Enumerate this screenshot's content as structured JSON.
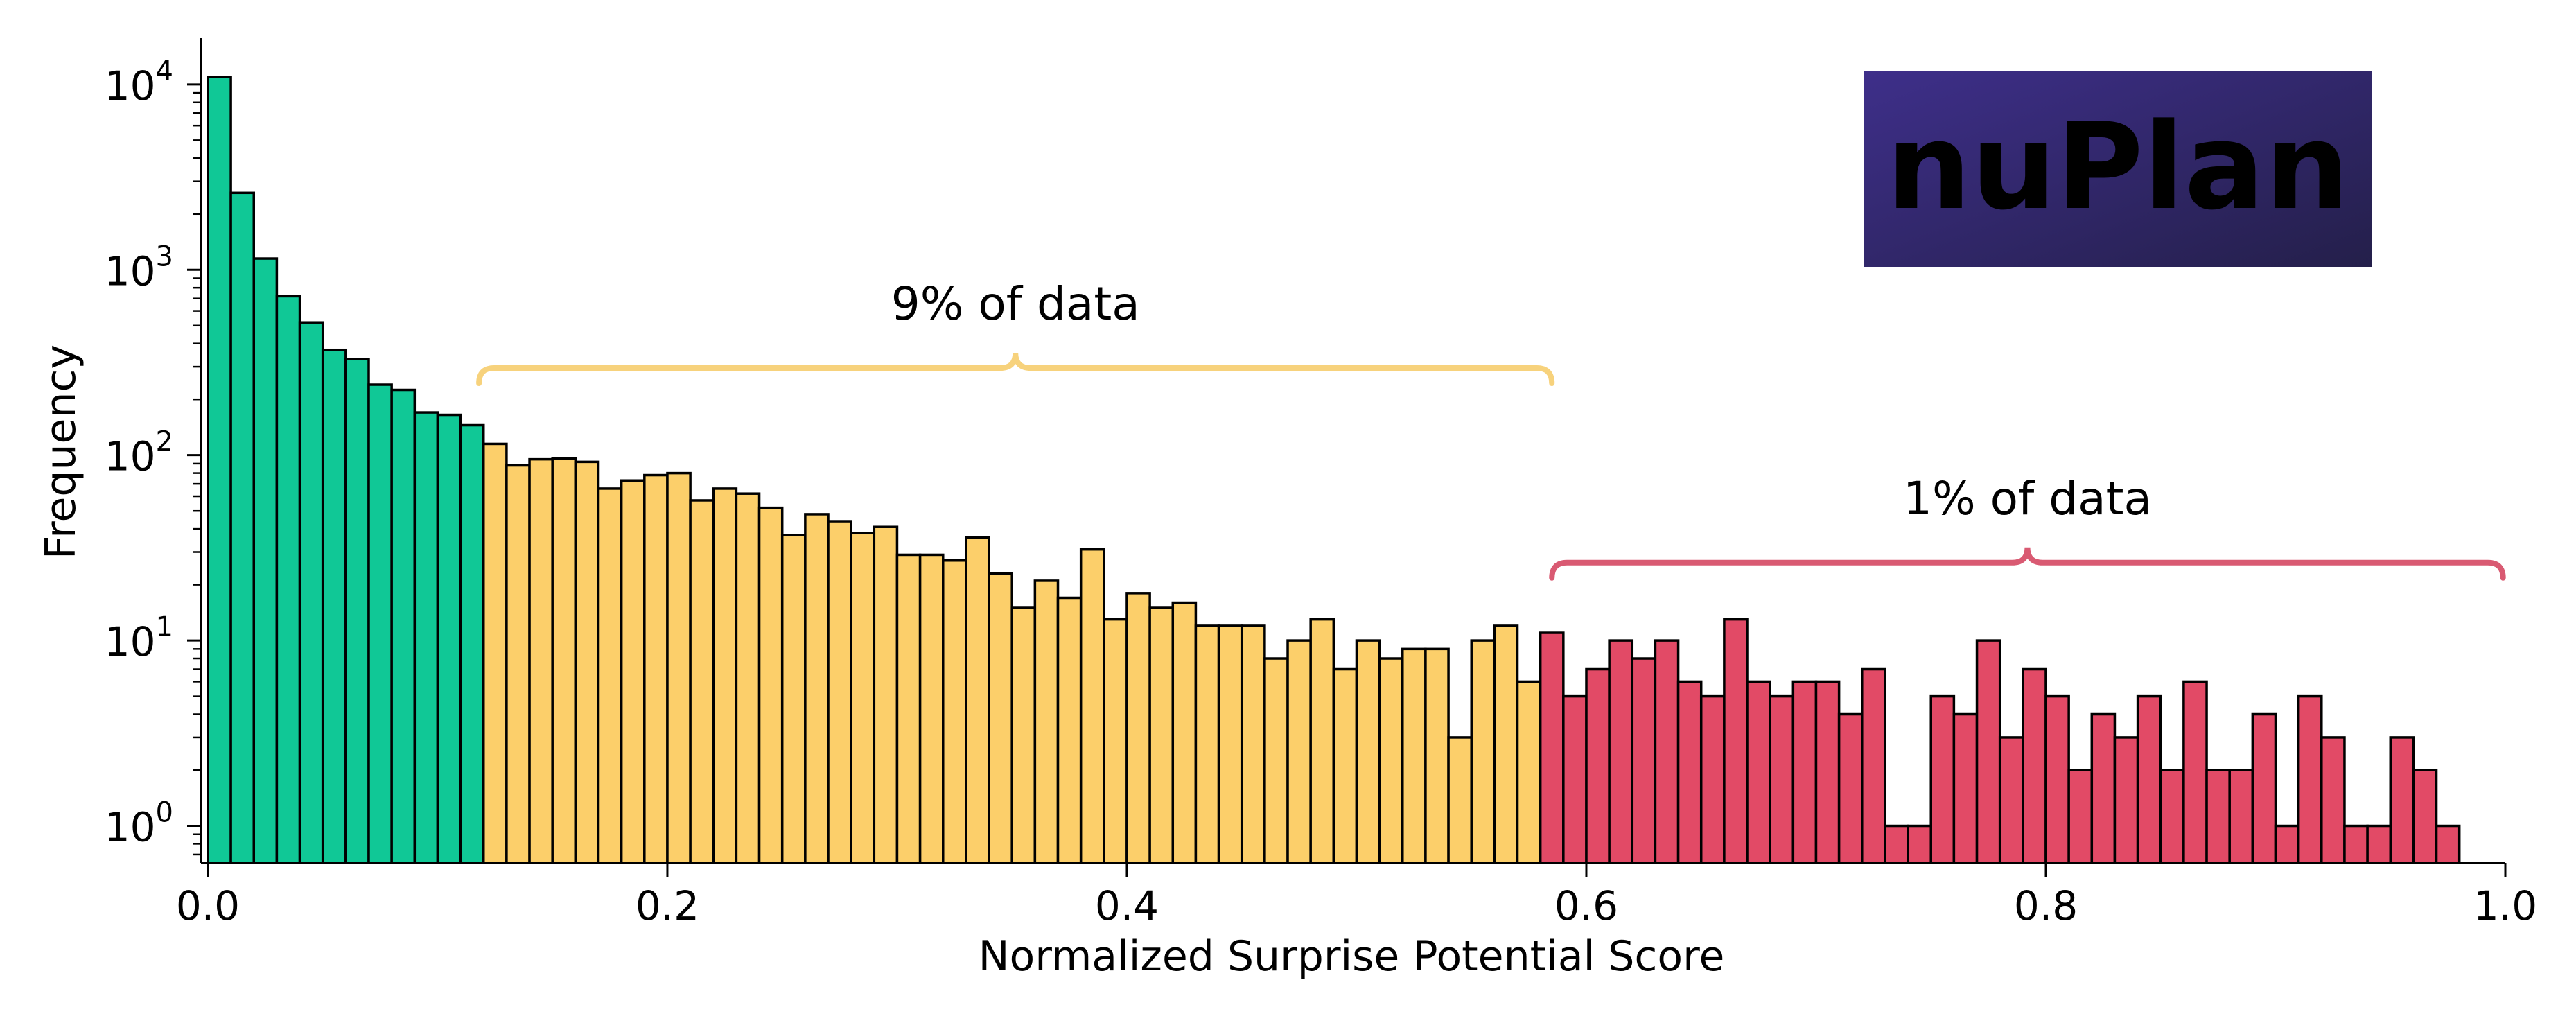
{
  "colors": {
    "green": "#10c896",
    "yellow": "#fccf6a",
    "red": "#e24a66",
    "edge": "#000000",
    "brace_yellow": "#f7d27c",
    "brace_red": "#d95a72",
    "logo_bg_left": "#3e2f8a",
    "logo_bg_right": "#241f4a",
    "logo_text": "#ffffff"
  },
  "logo": {
    "text": "nuPlan"
  },
  "chart_data": {
    "type": "bar",
    "subtype": "histogram",
    "xlabel": "Normalized Surprise Potential Score",
    "ylabel": "Frequency",
    "xlim": [
      -0.003,
      1.0
    ],
    "ylim_log10": [
      -0.2,
      4.25
    ],
    "y_scale": "log",
    "grid": false,
    "x_ticks": [
      {
        "value": 0.0,
        "label": "0.0"
      },
      {
        "value": 0.2,
        "label": "0.2"
      },
      {
        "value": 0.4,
        "label": "0.4"
      },
      {
        "value": 0.6,
        "label": "0.6"
      },
      {
        "value": 0.8,
        "label": "0.8"
      },
      {
        "value": 1.0,
        "label": "1.0"
      }
    ],
    "y_ticks": [
      {
        "exp": 0,
        "base": "10",
        "sup": "0"
      },
      {
        "exp": 1,
        "base": "10",
        "sup": "1"
      },
      {
        "exp": 2,
        "base": "10",
        "sup": "2"
      },
      {
        "exp": 3,
        "base": "10",
        "sup": "3"
      },
      {
        "exp": 4,
        "base": "10",
        "sup": "4"
      }
    ],
    "bin_start": 0.0,
    "bin_width": 0.01,
    "series": [
      {
        "name": "",
        "color_key": "green",
        "start_bin": 0,
        "values": [
          11000,
          2600,
          1150,
          720,
          520,
          370,
          330,
          240,
          225,
          170,
          165,
          145
        ]
      },
      {
        "name": "",
        "color_key": "yellow",
        "start_bin": 12,
        "values": [
          115,
          88,
          95,
          96,
          92,
          66,
          73,
          78,
          80,
          57,
          66,
          62,
          52,
          37,
          48,
          44,
          38,
          41,
          29,
          29,
          27,
          36,
          23,
          15,
          21,
          17,
          31,
          13,
          18,
          15,
          16,
          12,
          12,
          12,
          8,
          10,
          13,
          7,
          10,
          8,
          9,
          9,
          3,
          10,
          12,
          6
        ]
      },
      {
        "name": "",
        "color_key": "red",
        "start_bin": 58,
        "values": [
          11,
          5,
          7,
          10,
          8,
          10,
          6,
          5,
          13,
          6,
          5,
          6,
          6,
          4,
          7,
          1,
          1,
          5,
          4,
          10,
          3,
          7,
          5,
          2,
          4,
          3,
          5,
          2,
          6,
          2,
          2,
          4,
          1,
          5,
          3,
          1,
          1,
          3,
          2,
          1
        ]
      }
    ],
    "annotations": [
      {
        "text": "9% of data",
        "x_from": 0.118,
        "x_to": 0.585,
        "level_log10": 2.47,
        "color_key": "brace_yellow"
      },
      {
        "text": "1% of data",
        "x_from": 0.585,
        "x_to": 0.999,
        "level_log10": 1.42,
        "color_key": "brace_red"
      }
    ]
  }
}
